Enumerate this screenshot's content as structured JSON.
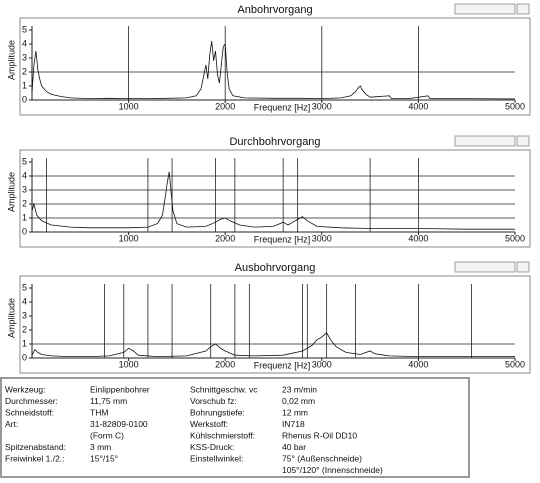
{
  "chart_data": [
    {
      "type": "line",
      "title": "Anbohrvorgang",
      "x_label": "Frequenz [Hz]",
      "y_label": "Amplitude",
      "color": "#111111",
      "x": [
        0,
        20,
        40,
        60,
        80,
        100,
        150,
        200,
        300,
        400,
        600,
        800,
        1000,
        1200,
        1400,
        1600,
        1700,
        1750,
        1780,
        1800,
        1820,
        1840,
        1860,
        1880,
        1900,
        1920,
        1940,
        1960,
        1980,
        2000,
        2020,
        2040,
        2080,
        2200,
        2500,
        2800,
        3000,
        3200,
        3300,
        3350,
        3380,
        3400,
        3420,
        3460,
        3500,
        3700,
        3720,
        3900,
        4100,
        4120,
        4500,
        5000
      ],
      "values": [
        0.5,
        2.5,
        3.5,
        2.2,
        1.5,
        1.0,
        0.6,
        0.4,
        0.25,
        0.15,
        0.1,
        0.12,
        0.1,
        0.1,
        0.12,
        0.15,
        0.3,
        0.8,
        1.8,
        2.5,
        1.5,
        3.2,
        4.2,
        2.8,
        3.5,
        1.8,
        1.2,
        2.5,
        3.8,
        4.0,
        2.0,
        0.8,
        0.3,
        0.15,
        0.12,
        0.12,
        0.1,
        0.15,
        0.3,
        0.6,
        0.9,
        1.0,
        0.7,
        0.4,
        0.2,
        0.3,
        0.1,
        0.1,
        0.3,
        0.1,
        0.1,
        0.08
      ],
      "xlim": [
        0,
        5000
      ],
      "ylim": [
        0,
        5
      ],
      "xticks": [
        1000,
        2000,
        3000,
        4000,
        5000
      ],
      "yticks": [
        0,
        1,
        2,
        3,
        4,
        5
      ],
      "hgrid": [
        2
      ],
      "vlines": [
        1000,
        2000,
        3000,
        4000
      ]
    },
    {
      "type": "line",
      "title": "Durchbohrvorgang",
      "x_label": "Frequenz [Hz]",
      "y_label": "Amplitude",
      "color": "#111111",
      "x": [
        0,
        20,
        50,
        100,
        200,
        400,
        600,
        800,
        1000,
        1200,
        1300,
        1350,
        1380,
        1400,
        1420,
        1440,
        1460,
        1500,
        1600,
        1800,
        1900,
        1950,
        2000,
        2050,
        2150,
        2300,
        2500,
        2600,
        2650,
        2700,
        2750,
        2800,
        2850,
        2950,
        3200,
        3500,
        4000,
        4500,
        5000
      ],
      "values": [
        1.5,
        2.0,
        1.2,
        0.8,
        0.5,
        0.35,
        0.3,
        0.3,
        0.3,
        0.35,
        0.6,
        1.2,
        2.5,
        3.5,
        4.3,
        2.8,
        1.5,
        0.6,
        0.35,
        0.4,
        0.7,
        0.9,
        1.0,
        0.8,
        0.5,
        0.35,
        0.4,
        0.7,
        0.5,
        0.7,
        0.9,
        1.1,
        0.8,
        0.4,
        0.3,
        0.25,
        0.25,
        0.2,
        0.2
      ],
      "xlim": [
        0,
        5000
      ],
      "ylim": [
        0,
        5
      ],
      "xticks": [
        1000,
        2000,
        3000,
        4000,
        5000
      ],
      "yticks": [
        0,
        1,
        2,
        3,
        4,
        5
      ],
      "hgrid": [
        1,
        2,
        3,
        4
      ],
      "vlines": [
        150,
        1200,
        1450,
        1900,
        2100,
        2600,
        2750,
        3500,
        4000
      ]
    },
    {
      "type": "line",
      "title": "Ausbohrvorgang",
      "x_label": "Frequenz [Hz]",
      "y_label": "Amplitude",
      "color": "#111111",
      "x": [
        0,
        30,
        60,
        100,
        200,
        400,
        600,
        800,
        950,
        1000,
        1050,
        1100,
        1300,
        1600,
        1800,
        1850,
        1900,
        1950,
        2000,
        2100,
        2300,
        2600,
        2800,
        2900,
        2950,
        3000,
        3050,
        3100,
        3150,
        3250,
        3400,
        3500,
        3550,
        3700,
        4000,
        4500,
        5000
      ],
      "values": [
        0.2,
        0.6,
        0.4,
        0.25,
        0.15,
        0.1,
        0.1,
        0.15,
        0.4,
        0.7,
        0.5,
        0.2,
        0.1,
        0.15,
        0.5,
        0.8,
        1.0,
        0.7,
        0.5,
        0.2,
        0.15,
        0.2,
        0.5,
        0.9,
        1.3,
        1.5,
        1.8,
        1.2,
        0.8,
        0.4,
        0.25,
        0.5,
        0.3,
        0.15,
        0.1,
        0.1,
        0.1
      ],
      "xlim": [
        0,
        5000
      ],
      "ylim": [
        0,
        5
      ],
      "xticks": [
        1000,
        2000,
        3000,
        4000,
        5000
      ],
      "yticks": [
        0,
        1,
        2,
        3,
        4,
        5
      ],
      "hgrid": [
        1
      ],
      "vlines": [
        750,
        950,
        1200,
        1450,
        1850,
        2100,
        2250,
        2800,
        2850,
        3050,
        3350,
        4000,
        4550
      ]
    }
  ],
  "parameters": {
    "left": [
      {
        "label": "Werkzeug:",
        "lines": [
          "Einlippenbohrer"
        ]
      },
      {
        "label": "Durchmesser:",
        "lines": [
          "11,75 mm"
        ]
      },
      {
        "label": "Schneidstoff:",
        "lines": [
          "THM"
        ]
      },
      {
        "label": "Art:",
        "lines": [
          "31-82809-0100",
          "(Form C)"
        ]
      },
      {
        "label": "Spitzenabstand:",
        "lines": [
          "3 mm"
        ]
      },
      {
        "label": "Freiwinkel 1./2.:",
        "lines": [
          "15°/15°"
        ]
      }
    ],
    "right": [
      {
        "label": "Schnittgeschw. vc",
        "lines": [
          "23 m/min"
        ]
      },
      {
        "label": "Vorschub fz:",
        "lines": [
          "0,02 mm"
        ]
      },
      {
        "label": "Bohrungstiefe:",
        "lines": [
          "12 mm"
        ]
      },
      {
        "label": "Werkstoff:",
        "lines": [
          "IN718"
        ]
      },
      {
        "label": "Kühlschmierstoff:",
        "lines": [
          "Rhenus R-Oil DD10"
        ]
      },
      {
        "label": "KSS-Druck:",
        "lines": [
          "40 bar"
        ]
      },
      {
        "label": "Einstellwinkel:",
        "lines": [
          "75° (Außenschneide)",
          "105°/120° (Innenschneide)"
        ]
      }
    ]
  }
}
